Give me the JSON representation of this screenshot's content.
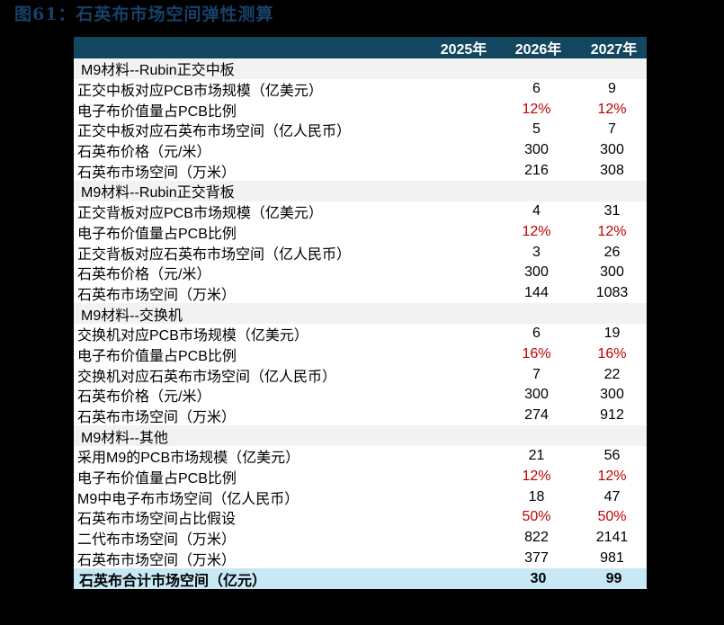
{
  "figure_title": "图61：石英布市场空间弹性测算",
  "header": {
    "label": "",
    "cols": [
      "2025年",
      "2026年",
      "2027年"
    ]
  },
  "sections": [
    {
      "title": "M9材料--Rubin正交中板",
      "rows": [
        {
          "label": "正交中板对应PCB市场规模（亿美元）",
          "v2025": "",
          "v2026": "6",
          "v2027": "9",
          "highlight": false
        },
        {
          "label": "电子布价值量占PCB比例",
          "v2025": "",
          "v2026": "12%",
          "v2027": "12%",
          "highlight": true
        },
        {
          "label": "正交中板对应石英布市场空间（亿人民币）",
          "v2025": "",
          "v2026": "5",
          "v2027": "7",
          "highlight": false
        },
        {
          "label": "石英布价格（元/米）",
          "v2025": "",
          "v2026": "300",
          "v2027": "300",
          "highlight": false
        },
        {
          "label": "石英布市场空间（万米）",
          "v2025": "",
          "v2026": "216",
          "v2027": "308",
          "highlight": false
        }
      ]
    },
    {
      "title": "M9材料--Rubin正交背板",
      "rows": [
        {
          "label": "正交背板对应PCB市场规模（亿美元）",
          "v2025": "",
          "v2026": "4",
          "v2027": "31",
          "highlight": false
        },
        {
          "label": "电子布价值量占PCB比例",
          "v2025": "",
          "v2026": "12%",
          "v2027": "12%",
          "highlight": true
        },
        {
          "label": "正交背板对应石英布市场空间（亿人民币）",
          "v2025": "",
          "v2026": "3",
          "v2027": "26",
          "highlight": false
        },
        {
          "label": "石英布价格（元/米）",
          "v2025": "",
          "v2026": "300",
          "v2027": "300",
          "highlight": false
        },
        {
          "label": "石英布市场空间（万米）",
          "v2025": "",
          "v2026": "144",
          "v2027": "1083",
          "highlight": false
        }
      ]
    },
    {
      "title": "M9材料--交换机",
      "rows": [
        {
          "label": "交换机对应PCB市场规模（亿美元）",
          "v2025": "",
          "v2026": "6",
          "v2027": "19",
          "highlight": false
        },
        {
          "label": "电子布价值量占PCB比例",
          "v2025": "",
          "v2026": "16%",
          "v2027": "16%",
          "highlight": true
        },
        {
          "label": "交换机对应石英布市场空间（亿人民币）",
          "v2025": "",
          "v2026": "7",
          "v2027": "22",
          "highlight": false
        },
        {
          "label": "石英布价格（元/米）",
          "v2025": "",
          "v2026": "300",
          "v2027": "300",
          "highlight": false
        },
        {
          "label": "石英布市场空间（万米）",
          "v2025": "",
          "v2026": "274",
          "v2027": "912",
          "highlight": false
        }
      ]
    },
    {
      "title": "M9材料--其他",
      "rows": [
        {
          "label": "采用M9的PCB市场规模（亿美元）",
          "v2025": "",
          "v2026": "21",
          "v2027": "56",
          "highlight": false
        },
        {
          "label": "电子布价值量占PCB比例",
          "v2025": "",
          "v2026": "12%",
          "v2027": "12%",
          "highlight": true
        },
        {
          "label": "M9中电子布市场空间（亿人民币）",
          "v2025": "",
          "v2026": "18",
          "v2027": "47",
          "highlight": false
        },
        {
          "label": "石英布市场空间占比假设",
          "v2025": "",
          "v2026": "50%",
          "v2027": "50%",
          "highlight": true
        },
        {
          "label": "二代布市场空间（万米）",
          "v2025": "",
          "v2026": "822",
          "v2027": "2141",
          "highlight": false
        },
        {
          "label": "石英布市场空间（万米）",
          "v2025": "",
          "v2026": "377",
          "v2027": "981",
          "highlight": false
        }
      ]
    }
  ],
  "total": {
    "label": "石英布合计市场空间（亿元）",
    "v2025": "",
    "v2026": "30",
    "v2027": "99"
  },
  "colors": {
    "header_bg": "#13465f",
    "section_bg": "#f2f2f2",
    "total_bg": "#c8e8f6",
    "highlight_text": "#c00000",
    "title_text": "#17416a"
  }
}
